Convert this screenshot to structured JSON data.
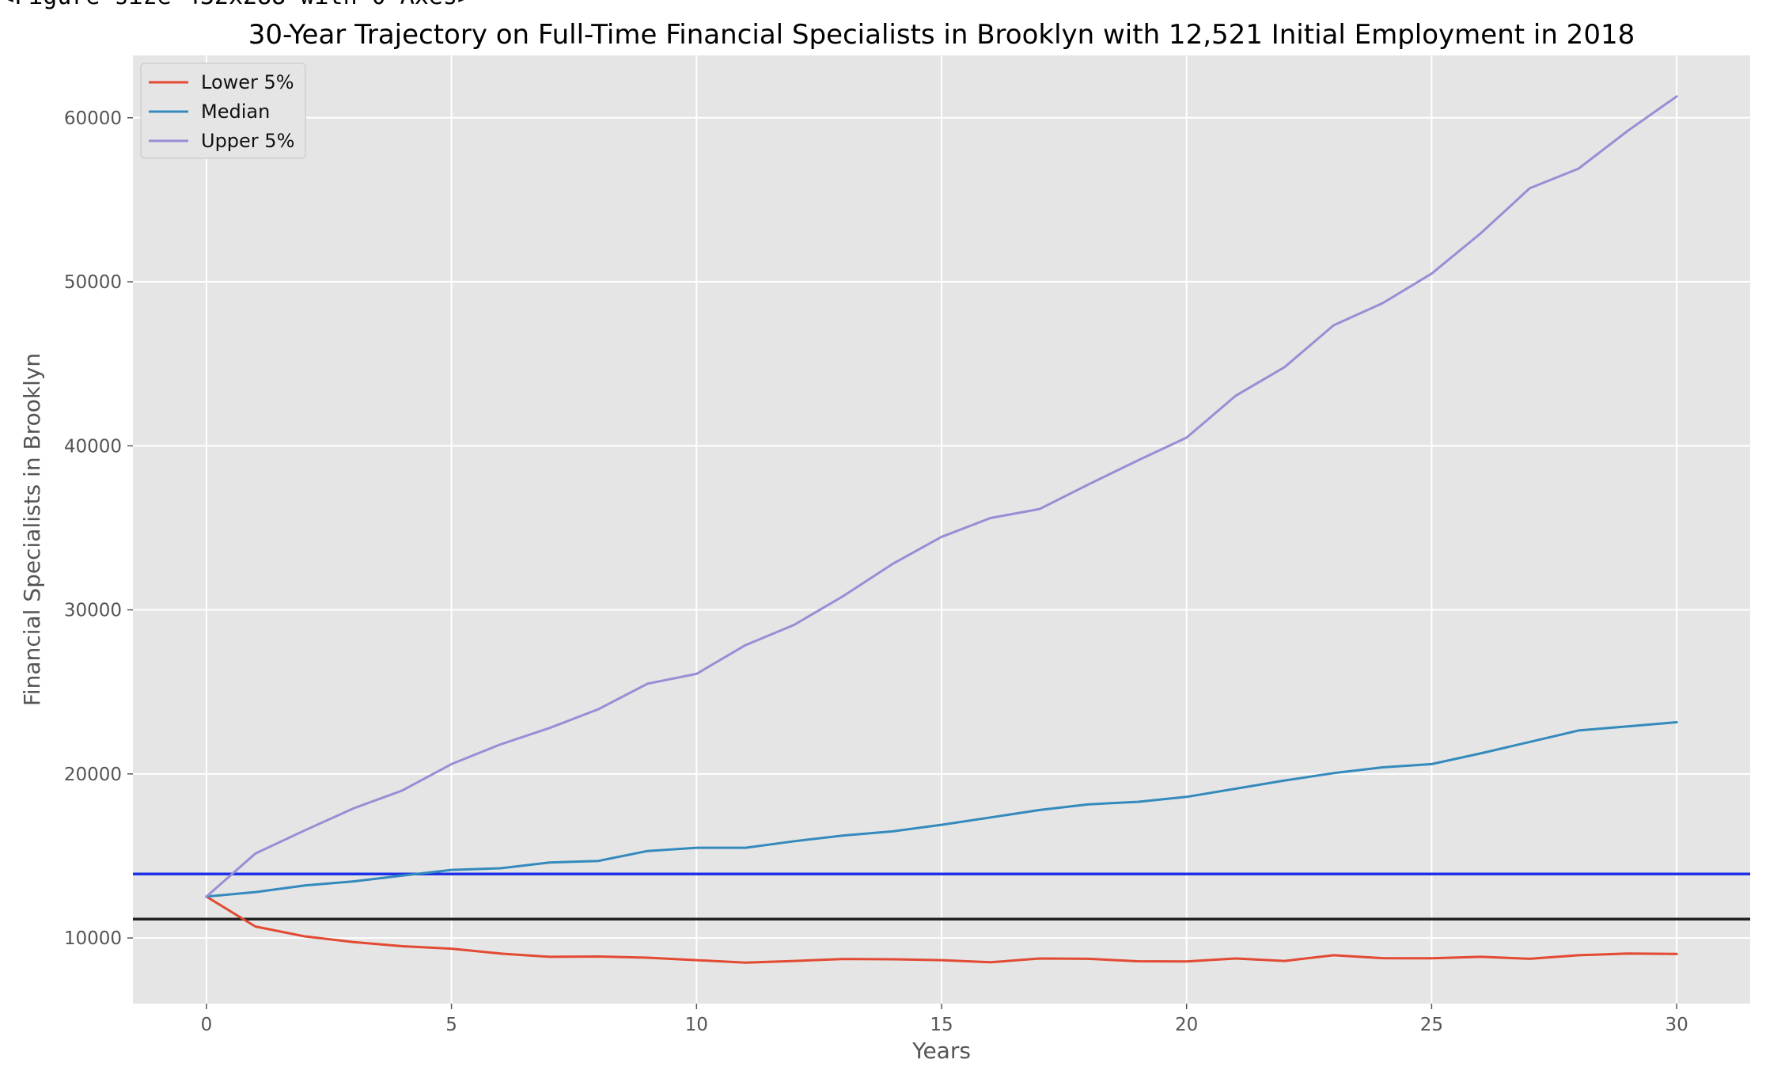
{
  "figure_caption": "<Figure size 432x288 with 0 Axes>",
  "chart_data": {
    "type": "line",
    "title": "30-Year Trajectory on Full-Time Financial Specialists in Brooklyn with 12,521 Initial Employment in 2018",
    "xlabel": "Years",
    "ylabel": "Financial Specialists in Brooklyn",
    "xlim": [
      -1.5,
      31.5
    ],
    "ylim": [
      6000,
      63800
    ],
    "xticks": [
      0,
      5,
      10,
      15,
      20,
      25,
      30
    ],
    "yticks": [
      10000,
      20000,
      30000,
      40000,
      50000,
      60000
    ],
    "grid": true,
    "legend_position": "top-left",
    "x": [
      0,
      1,
      2,
      3,
      4,
      5,
      6,
      7,
      8,
      9,
      10,
      11,
      12,
      13,
      14,
      15,
      16,
      17,
      18,
      19,
      20,
      21,
      22,
      23,
      24,
      25,
      26,
      27,
      28,
      29,
      30
    ],
    "series": [
      {
        "name": "Lower 5%",
        "color": "#e24a33",
        "values": [
          12521,
          10700,
          10100,
          9750,
          9500,
          9350,
          9050,
          8850,
          8870,
          8800,
          8650,
          8500,
          8600,
          8720,
          8700,
          8650,
          8520,
          8750,
          8730,
          8580,
          8570,
          8750,
          8600,
          8950,
          8770,
          8760,
          8850,
          8730,
          8950,
          9050,
          9030
        ]
      },
      {
        "name": "Median",
        "color": "#348abd",
        "values": [
          12521,
          12800,
          13200,
          13450,
          13800,
          14150,
          14250,
          14600,
          14700,
          15300,
          15500,
          15500,
          15900,
          16250,
          16500,
          16900,
          17350,
          17800,
          18150,
          18300,
          18600,
          19100,
          19600,
          20050,
          20400,
          20600,
          21250,
          21950,
          22650,
          22900,
          23150
        ]
      },
      {
        "name": "Upper 5%",
        "color": "#988ed5",
        "values": [
          12521,
          15150,
          16550,
          17900,
          19000,
          20600,
          21800,
          22800,
          23950,
          25500,
          26100,
          27850,
          29100,
          30850,
          32800,
          34450,
          35600,
          36150,
          37650,
          39100,
          40500,
          43050,
          44800,
          47350,
          48700,
          50500,
          52950,
          55700,
          56900,
          59200,
          61300
        ]
      }
    ],
    "reference_lines": [
      {
        "y": 13900,
        "color": "#1d32e8"
      },
      {
        "y": 11150,
        "color": "#222222"
      }
    ]
  }
}
